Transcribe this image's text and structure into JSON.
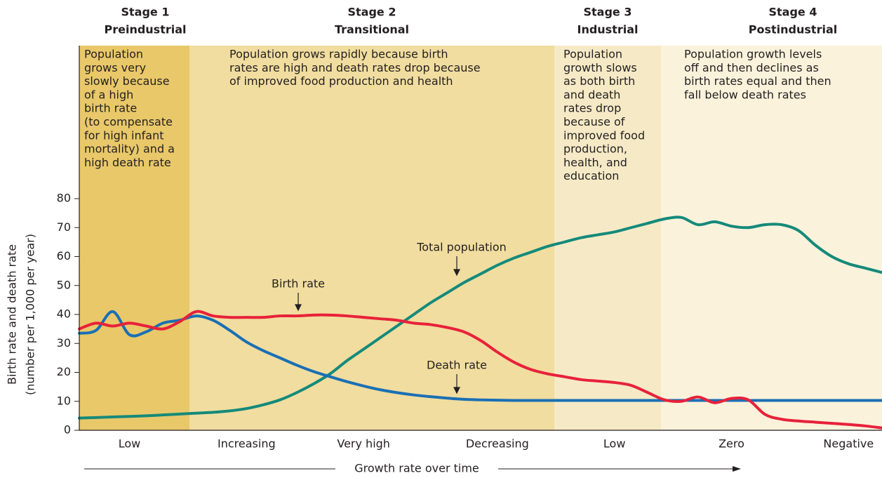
{
  "chart_data": {
    "type": "line",
    "y_label": [
      "Birth rate and death rate",
      "(number per 1,000 per year)"
    ],
    "x_label": "Growth rate over time",
    "stages": [
      {
        "number": "Stage 1",
        "name": "Preindustrial",
        "description": [
          "Population",
          "grows very",
          "slowly because",
          "of a high",
          "birth rate",
          "(to compensate",
          "for high infant",
          "mortality) and a",
          "high death rate"
        ]
      },
      {
        "number": "Stage 2",
        "name": "Transitional",
        "description": [
          "Population grows rapidly because birth",
          "rates are high and death rates drop because",
          "of improved food production and health"
        ]
      },
      {
        "number": "Stage 3",
        "name": "Industrial",
        "description": [
          "Population",
          "growth slows",
          "as both birth",
          "and death",
          "rates drop",
          "because of",
          "improved food",
          "production,",
          "health, and",
          "education"
        ]
      },
      {
        "number": "Stage 4",
        "name": "Postindustrial",
        "description": [
          "Population growth levels",
          "off and then declines as",
          "birth rates equal and then",
          "fall below death rates"
        ]
      }
    ],
    "categories": [
      null,
      null,
      null,
      "Low",
      null,
      null,
      null,
      null,
      null,
      null,
      "Increasing",
      null,
      null,
      null,
      null,
      null,
      null,
      "Very high",
      null,
      null,
      null,
      null,
      null,
      null,
      null,
      "Decreasing",
      null,
      null,
      null,
      null,
      null,
      null,
      "Low",
      null,
      null,
      null,
      null,
      null,
      null,
      "Zero",
      null,
      null,
      null,
      null,
      null,
      null,
      "Negative",
      null,
      null
    ],
    "series": [
      {
        "name": "Birth rate",
        "color": "#e8213a",
        "values": [
          35,
          37,
          36,
          37,
          36,
          35,
          37.5,
          41,
          39.5,
          39,
          39,
          39,
          39.5,
          39.5,
          39.8,
          39.8,
          39.5,
          39,
          38.5,
          38,
          37,
          36.5,
          35.5,
          34,
          31,
          27,
          23.5,
          21,
          19.5,
          18.5,
          17.5,
          17,
          16.5,
          15.5,
          13,
          10.5,
          10,
          11.5,
          9.5,
          11,
          10.5,
          5.5,
          3.8,
          3.2,
          2.8,
          2.4,
          2,
          1.5,
          0.8
        ]
      },
      {
        "name": "Death rate",
        "color": "#1a6fb5",
        "values": [
          33.5,
          34.5,
          41,
          33,
          34,
          37,
          38,
          39.5,
          38,
          34.5,
          30.5,
          27.5,
          25,
          22.5,
          20.3,
          18.5,
          16.8,
          15.3,
          14,
          13,
          12.2,
          11.6,
          11.1,
          10.7,
          10.5,
          10.4,
          10.3,
          10.3,
          10.3,
          10.3,
          10.3,
          10.3,
          10.3,
          10.3,
          10.3,
          10.3,
          10.3,
          10.3,
          10.3,
          10.3,
          10.3,
          10.3,
          10.3,
          10.3,
          10.3,
          10.3,
          10.3,
          10.3,
          10.3
        ]
      },
      {
        "name": "Total population",
        "color": "#148a7a",
        "values": [
          4.2,
          4.4,
          4.6,
          4.8,
          5,
          5.3,
          5.6,
          5.9,
          6.2,
          6.7,
          7.5,
          8.8,
          10.5,
          13,
          16,
          19.5,
          24,
          28,
          32,
          36,
          40,
          44,
          47.5,
          51,
          54,
          57,
          59.5,
          61.5,
          63.5,
          65,
          66.5,
          67.5,
          68.5,
          70,
          71.5,
          73,
          73.5,
          71,
          72,
          70.5,
          70,
          71,
          71,
          69,
          64,
          60,
          57.5,
          56,
          54.5
        ]
      }
    ],
    "ylim": [
      0,
      80
    ],
    "yticks": [
      0,
      10,
      20,
      30,
      40,
      50,
      60,
      70,
      80
    ]
  }
}
